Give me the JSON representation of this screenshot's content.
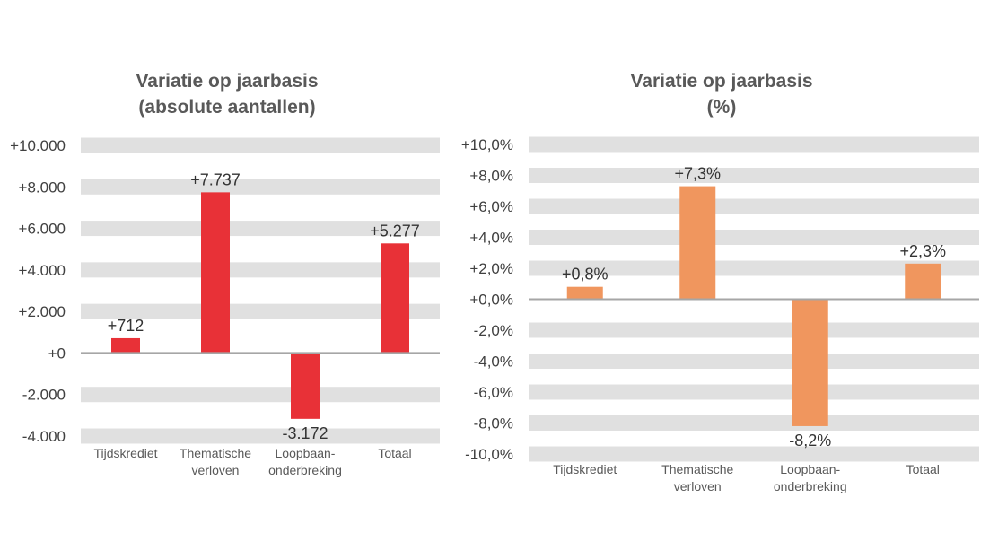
{
  "chart_data": [
    {
      "type": "bar",
      "title": [
        "Variatie op jaarbasis",
        "(absolute aantallen)"
      ],
      "categories": [
        [
          "Tijdskrediet"
        ],
        [
          "Thematische",
          "verloven"
        ],
        [
          "Loopbaan-",
          "onderbreking"
        ],
        [
          "Totaal"
        ]
      ],
      "values": [
        712,
        7737,
        -3172,
        5277
      ],
      "data_labels": [
        "+712",
        "+7.737",
        "-3.172",
        "+5.277"
      ],
      "ylim": [
        -4000,
        10000
      ],
      "yticks": [
        10000,
        8000,
        6000,
        4000,
        2000,
        0,
        -2000,
        -4000
      ],
      "ytick_labels": [
        "+10.000",
        "+8.000",
        "+6.000",
        "+4.000",
        "+2.000",
        "+0",
        "-2.000",
        "-4.000"
      ],
      "grid": "horizontal bands",
      "color": "#E83137"
    },
    {
      "type": "bar",
      "title": [
        "Variatie op jaarbasis",
        "(%)"
      ],
      "categories": [
        [
          "Tijdskrediet"
        ],
        [
          "Thematische",
          "verloven"
        ],
        [
          "Loopbaan-",
          "onderbreking"
        ],
        [
          "Totaal"
        ]
      ],
      "values": [
        0.8,
        7.3,
        -8.2,
        2.3
      ],
      "data_labels": [
        "+0,8%",
        "+7,3%",
        "-8,2%",
        "+2,3%"
      ],
      "ylim": [
        -10,
        10
      ],
      "yticks": [
        10,
        8,
        6,
        4,
        2,
        0,
        -2,
        -4,
        -6,
        -8,
        -10
      ],
      "ytick_labels": [
        "+10,0%",
        "+8,0%",
        "+6,0%",
        "+4,0%",
        "+2,0%",
        "+0,0%",
        "-2,0%",
        "-4,0%",
        "-6,0%",
        "-8,0%",
        "-10,0%"
      ],
      "grid": "horizontal bands",
      "color": "#F0965E"
    }
  ]
}
